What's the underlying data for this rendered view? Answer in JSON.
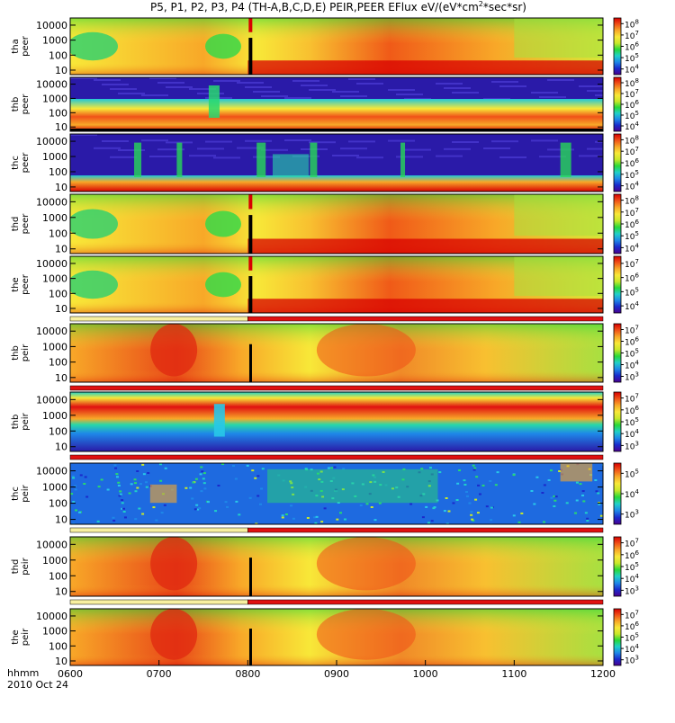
{
  "title": {
    "main": "P5, P1, P2, P3, P4 (TH-A,B,C,D,E) PEIR,PEER EFlux eV/(eV*cm",
    "sup": "2",
    "tail": "*sec*sr)"
  },
  "footer": {
    "axis_name": "hhmm",
    "date": "2010 Oct 24"
  },
  "chart_data": {
    "type": "heatmap",
    "x_axis": {
      "label": "hhmm",
      "range": [
        "0600",
        "1200"
      ],
      "ticks": [
        "0600",
        "0700",
        "0800",
        "0900",
        "1000",
        "1100",
        "1200"
      ]
    },
    "y_axis": {
      "scale": "log",
      "range": [
        5,
        30000
      ],
      "ticks": [
        "10",
        "100",
        "1000",
        "10000"
      ]
    },
    "colormap": [
      "#4a0090",
      "#1a2acc",
      "#1e88e8",
      "#20d0c8",
      "#28d838",
      "#c8e82a",
      "#f8e838",
      "#f8a828",
      "#f05218",
      "#d80000"
    ],
    "panels": [
      {
        "name": "tha peer",
        "probe": "tha",
        "species": "peer",
        "cbar": {
          "scale": "log",
          "ticks": [
            "10",
            "10",
            "10",
            "10",
            "10"
          ],
          "exponents": [
            "4",
            "5",
            "6",
            "7",
            "8"
          ]
        },
        "style": "eflux-smooth",
        "mode_bar": []
      },
      {
        "name": "thb peer",
        "probe": "thb",
        "species": "peer",
        "cbar": {
          "scale": "log",
          "ticks": [
            "10",
            "10",
            "10",
            "10",
            "10"
          ],
          "exponents": [
            "4",
            "5",
            "6",
            "7",
            "8"
          ]
        },
        "style": "band",
        "mode_bar": []
      },
      {
        "name": "thc peer",
        "probe": "thc",
        "species": "peer",
        "cbar": {
          "scale": "log",
          "ticks": [
            "10",
            "10",
            "10",
            "10",
            "10"
          ],
          "exponents": [
            "4",
            "5",
            "6",
            "7",
            "8"
          ]
        },
        "style": "band-low",
        "mode_bar": []
      },
      {
        "name": "thd peer",
        "probe": "thd",
        "species": "peer",
        "cbar": {
          "scale": "log",
          "ticks": [
            "10",
            "10",
            "10",
            "10",
            "10"
          ],
          "exponents": [
            "4",
            "5",
            "6",
            "7",
            "8"
          ]
        },
        "style": "eflux-smooth",
        "mode_bar": []
      },
      {
        "name": "the peer",
        "probe": "the",
        "species": "peer",
        "cbar": {
          "scale": "log",
          "ticks": [
            "10",
            "10",
            "10",
            "10"
          ],
          "exponents": [
            "4",
            "5",
            "6",
            "7"
          ]
        },
        "style": "eflux-smooth",
        "mode_bar": [
          {
            "from": "0600",
            "to": "0800",
            "color": "#f8f0a0"
          },
          {
            "from": "0800",
            "to": "1200",
            "color": "#e01010"
          }
        ]
      },
      {
        "name": "thb peir",
        "probe": "thb",
        "species": "peir",
        "cbar": {
          "scale": "log",
          "ticks": [
            "10",
            "10",
            "10",
            "10",
            "10"
          ],
          "exponents": [
            "3",
            "4",
            "5",
            "6",
            "7"
          ]
        },
        "style": "ion",
        "mode_bar": [
          {
            "from": "0600",
            "to": "1200",
            "color": "#e01010"
          }
        ]
      },
      {
        "name": "thb peir",
        "probe": "thb",
        "species": "peir",
        "cbar": {
          "scale": "log",
          "ticks": [
            "10",
            "10",
            "10",
            "10",
            "10"
          ],
          "exponents": [
            "3",
            "4",
            "5",
            "6",
            "7"
          ]
        },
        "style": "band-ion",
        "mode_bar": [
          {
            "from": "0600",
            "to": "1200",
            "color": "#e01010"
          }
        ]
      },
      {
        "name": "thc peir",
        "probe": "thc",
        "species": "peir",
        "cbar": {
          "scale": "log",
          "ticks": [
            "10",
            "10",
            "10"
          ],
          "exponents": [
            "3",
            "4",
            "5"
          ]
        },
        "style": "noise",
        "mode_bar": [
          {
            "from": "0600",
            "to": "0800",
            "color": "#f8f0a0"
          },
          {
            "from": "0800",
            "to": "1200",
            "color": "#e01010"
          }
        ]
      },
      {
        "name": "thd peir",
        "probe": "thd",
        "species": "peir",
        "cbar": {
          "scale": "log",
          "ticks": [
            "10",
            "10",
            "10",
            "10",
            "10"
          ],
          "exponents": [
            "3",
            "4",
            "5",
            "6",
            "7"
          ]
        },
        "style": "ion",
        "mode_bar": [
          {
            "from": "0600",
            "to": "0800",
            "color": "#f8f0a0"
          },
          {
            "from": "0800",
            "to": "1200",
            "color": "#e01010"
          }
        ]
      },
      {
        "name": "the peir",
        "probe": "the",
        "species": "peir",
        "cbar": {
          "scale": "log",
          "ticks": [
            "10",
            "10",
            "10",
            "10",
            "10"
          ],
          "exponents": [
            "3",
            "4",
            "5",
            "6",
            "7"
          ]
        },
        "style": "ion",
        "mode_bar": []
      }
    ]
  }
}
